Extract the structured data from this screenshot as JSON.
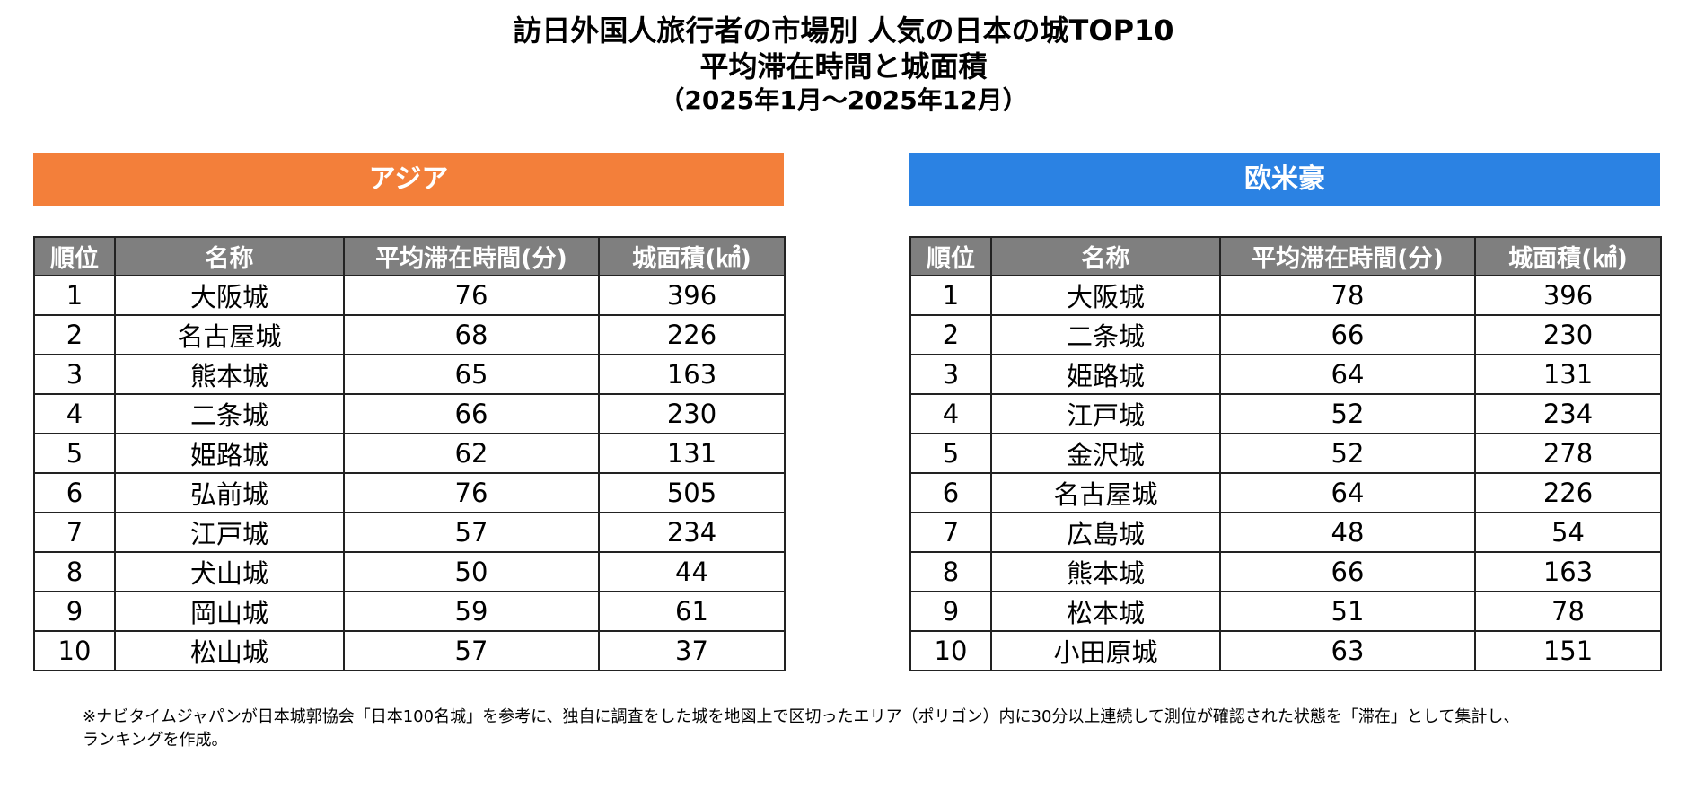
{
  "title": {
    "line1": "訪日外国人旅行者の市場別 人気の日本の城TOP10",
    "line2": "平均滞在時間と城面積",
    "line3": "（2025年1月～2025年12月）"
  },
  "columns": [
    "順位",
    "名称",
    "平均滞在時間(分)",
    "城面積(㎢)"
  ],
  "colors": {
    "asia_banner": "#f37f3a",
    "west_banner": "#2b82e3",
    "header_bg": "#7f7f7f"
  },
  "sections": [
    {
      "label": "アジア",
      "rows": [
        [
          "1",
          "大阪城",
          "76",
          "396"
        ],
        [
          "2",
          "名古屋城",
          "68",
          "226"
        ],
        [
          "3",
          "熊本城",
          "65",
          "163"
        ],
        [
          "4",
          "二条城",
          "66",
          "230"
        ],
        [
          "5",
          "姫路城",
          "62",
          "131"
        ],
        [
          "6",
          "弘前城",
          "76",
          "505"
        ],
        [
          "7",
          "江戸城",
          "57",
          "234"
        ],
        [
          "8",
          "犬山城",
          "50",
          "44"
        ],
        [
          "9",
          "岡山城",
          "59",
          "61"
        ],
        [
          "10",
          "松山城",
          "57",
          "37"
        ]
      ]
    },
    {
      "label": "欧米豪",
      "rows": [
        [
          "1",
          "大阪城",
          "78",
          "396"
        ],
        [
          "2",
          "二条城",
          "66",
          "230"
        ],
        [
          "3",
          "姫路城",
          "64",
          "131"
        ],
        [
          "4",
          "江戸城",
          "52",
          "234"
        ],
        [
          "5",
          "金沢城",
          "52",
          "278"
        ],
        [
          "6",
          "名古屋城",
          "64",
          "226"
        ],
        [
          "7",
          "広島城",
          "48",
          "54"
        ],
        [
          "8",
          "熊本城",
          "66",
          "163"
        ],
        [
          "9",
          "松本城",
          "51",
          "78"
        ],
        [
          "10",
          "小田原城",
          "63",
          "151"
        ]
      ]
    }
  ],
  "note": {
    "line1": "※ナビタイムジャパンが日本城郭協会「日本100名城」を参考に、独自に調査をした城を地図上で区切ったエリア（ポリゴン）内に30分以上連続して測位が確認された状態を「滞在」として集計し、",
    "line2": "ランキングを作成。"
  }
}
